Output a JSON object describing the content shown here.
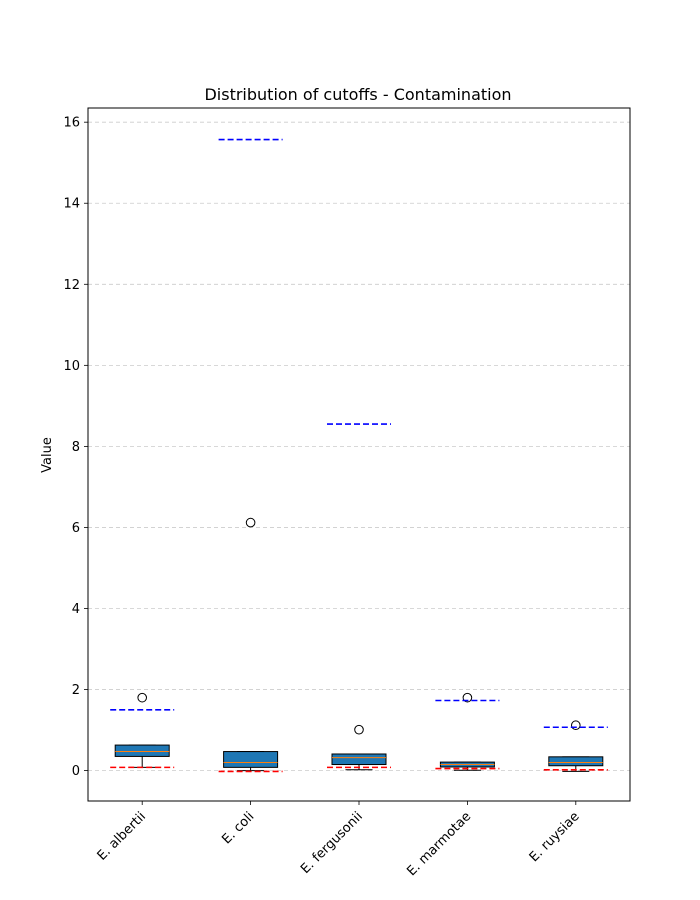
{
  "chart_data": {
    "type": "box",
    "title": "Distribution of cutoffs - Contamination",
    "xlabel": "",
    "ylabel": "Value",
    "ylim": [
      -0.75,
      16.35
    ],
    "yticks": [
      0,
      2,
      4,
      6,
      8,
      10,
      12,
      14,
      16
    ],
    "grid": "y-dashed",
    "categories": [
      "E. albertii",
      "E. coli",
      "E. fergusonii",
      "E. marmotae",
      "E. ruysiae"
    ],
    "boxes": [
      {
        "whisker_low": 0.08,
        "q1": 0.35,
        "median": 0.47,
        "q3": 0.63,
        "whisker_high": 0.63,
        "outliers": [
          1.8
        ],
        "upper_cutoff": 1.5,
        "lower_cutoff": 0.08
      },
      {
        "whisker_low": 0.0,
        "q1": 0.08,
        "median": 0.2,
        "q3": 0.47,
        "whisker_high": 0.47,
        "outliers": [
          6.12
        ],
        "upper_cutoff": 15.57,
        "lower_cutoff": -0.02
      },
      {
        "whisker_low": 0.02,
        "q1": 0.15,
        "median": 0.32,
        "q3": 0.41,
        "whisker_high": 0.41,
        "outliers": [
          1.01
        ],
        "upper_cutoff": 8.55,
        "lower_cutoff": 0.08
      },
      {
        "whisker_low": 0.01,
        "q1": 0.09,
        "median": 0.15,
        "q3": 0.21,
        "whisker_high": 0.21,
        "outliers": [
          1.8
        ],
        "upper_cutoff": 1.73,
        "lower_cutoff": 0.05
      },
      {
        "whisker_low": -0.02,
        "q1": 0.12,
        "median": 0.2,
        "q3": 0.34,
        "whisker_high": 0.34,
        "outliers": [
          1.12
        ],
        "upper_cutoff": 1.07,
        "lower_cutoff": 0.02
      }
    ],
    "colors": {
      "box_fill": "#1f77b4",
      "median": "#ff7f0e",
      "upper_cutoff": "#0000ff",
      "lower_cutoff": "#ff0000",
      "grid": "#cccccc"
    }
  }
}
